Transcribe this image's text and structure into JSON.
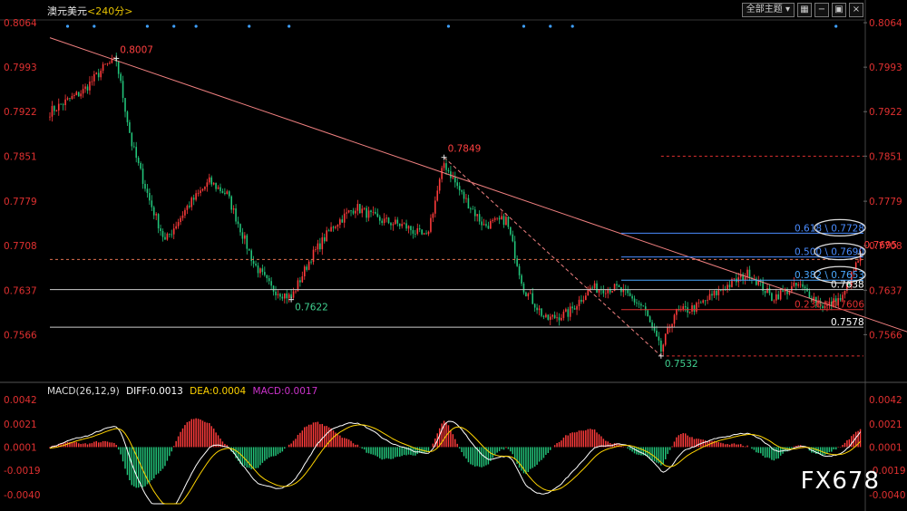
{
  "header": {
    "instrument": "澳元美元",
    "period": "<240分>",
    "theme_button": "全部主题",
    "theme_arrow": "▾"
  },
  "macd": {
    "params": "MACD(26,12,9)",
    "diff": "DIFF:0.0013",
    "dea": "DEA:0.0004",
    "macd": "MACD:0.0017"
  },
  "watermark": "FX678",
  "colors": {
    "bg": "#000000",
    "up": "#ff3b3b",
    "down": "#22c47a",
    "trend": "#f08080",
    "fib": "#4a8cff",
    "diff_line": "#ffffff",
    "dea_line": "#ffd400",
    "axis_text": "#e03030",
    "macd_text": "#cc33cc"
  },
  "chart_data": {
    "type": "candlestick",
    "ylim": [
      0.75,
      0.808
    ],
    "price_ticks": [
      "0.8064",
      "0.7993",
      "0.7922",
      "0.7851",
      "0.7779",
      "0.7708",
      "0.7637",
      "0.7566"
    ],
    "macd_ticks": [
      "0.0042",
      "0.0021",
      "0.0001",
      "-0.0019",
      "-0.0040"
    ],
    "macd_ylim": [
      -0.0048,
      0.0046
    ],
    "path_points": [
      {
        "i": 0,
        "p": 0.7922
      },
      {
        "i": 15,
        "p": 0.7955
      },
      {
        "i": 25,
        "p": 0.7995
      },
      {
        "i": 30,
        "p": 0.8004
      },
      {
        "i": 37,
        "p": 0.787
      },
      {
        "i": 45,
        "p": 0.778
      },
      {
        "i": 52,
        "p": 0.7715
      },
      {
        "i": 62,
        "p": 0.777
      },
      {
        "i": 72,
        "p": 0.781
      },
      {
        "i": 80,
        "p": 0.779
      },
      {
        "i": 92,
        "p": 0.768
      },
      {
        "i": 100,
        "p": 0.764
      },
      {
        "i": 109,
        "p": 0.7625
      },
      {
        "i": 118,
        "p": 0.769
      },
      {
        "i": 128,
        "p": 0.774
      },
      {
        "i": 138,
        "p": 0.777
      },
      {
        "i": 148,
        "p": 0.775
      },
      {
        "i": 160,
        "p": 0.774
      },
      {
        "i": 170,
        "p": 0.772
      },
      {
        "i": 178,
        "p": 0.784
      },
      {
        "i": 186,
        "p": 0.779
      },
      {
        "i": 196,
        "p": 0.774
      },
      {
        "i": 206,
        "p": 0.775
      },
      {
        "i": 214,
        "p": 0.764
      },
      {
        "i": 224,
        "p": 0.759
      },
      {
        "i": 234,
        "p": 0.76
      },
      {
        "i": 244,
        "p": 0.764
      },
      {
        "i": 256,
        "p": 0.764
      },
      {
        "i": 268,
        "p": 0.761
      },
      {
        "i": 276,
        "p": 0.754
      },
      {
        "i": 282,
        "p": 0.76
      },
      {
        "i": 292,
        "p": 0.761
      },
      {
        "i": 304,
        "p": 0.764
      },
      {
        "i": 316,
        "p": 0.7665
      },
      {
        "i": 326,
        "p": 0.7625
      },
      {
        "i": 338,
        "p": 0.7645
      },
      {
        "i": 350,
        "p": 0.761
      },
      {
        "i": 358,
        "p": 0.7625
      },
      {
        "i": 366,
        "p": 0.7693
      }
    ],
    "n_bars": 367,
    "trendline": {
      "from": {
        "i": 0,
        "p": 0.804
      },
      "to": {
        "i": 400,
        "p": 0.7555
      }
    },
    "swing_dash": {
      "from": {
        "i": 178,
        "p": 0.7849
      },
      "to": {
        "i": 276,
        "p": 0.7532
      }
    },
    "horizontal_lines": [
      {
        "p": 0.7686,
        "style": "dash",
        "color": "#e07050",
        "from": 0
      },
      {
        "p": 0.7638,
        "style": "solid",
        "color": "#cccccc",
        "from": 0,
        "label": "0.7638"
      },
      {
        "p": 0.7578,
        "style": "solid",
        "color": "#cccccc",
        "from": 0,
        "label": "0.7578"
      },
      {
        "p": 0.7851,
        "style": "dash",
        "color": "#e03030",
        "from": 276
      },
      {
        "p": 0.7532,
        "style": "dash",
        "color": "#e03030",
        "from": 276
      }
    ],
    "fibonacci": [
      {
        "ratio": "0.618",
        "value": "0.7728",
        "p": 0.7728,
        "color": "#4a8cff",
        "circled": true
      },
      {
        "ratio": "0.500",
        "value": "0.7690",
        "p": 0.769,
        "color": "#4a8cff",
        "circled": true
      },
      {
        "ratio": "0.382",
        "value": "0.7653",
        "p": 0.7653,
        "color": "#4aa8ff",
        "circled": true
      },
      {
        "ratio": "0.236",
        "value": "0.7606",
        "p": 0.7606,
        "color": "#e03030",
        "circled": false
      }
    ],
    "price_labels": [
      {
        "text": "0.8007",
        "i": 30,
        "p": 0.8007,
        "color": "#ff4040"
      },
      {
        "text": "0.7849",
        "i": 178,
        "p": 0.7849,
        "color": "#ff4040"
      },
      {
        "text": "0.7622",
        "i": 109,
        "p": 0.7622,
        "color": "#40d090"
      },
      {
        "text": "0.7532",
        "i": 276,
        "p": 0.7532,
        "color": "#40d090"
      },
      {
        "text": "0.7695",
        "i": 366,
        "p": 0.7695,
        "color": "#ff4040"
      }
    ],
    "event_dots": [
      8,
      20,
      44,
      56,
      66,
      90,
      108,
      180,
      214,
      226,
      236,
      355
    ]
  }
}
